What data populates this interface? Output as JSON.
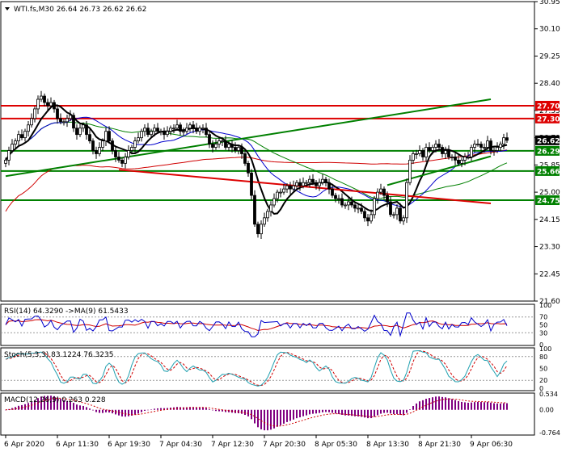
{
  "colors": {
    "background": "#ffffff",
    "axis": "#000000",
    "bull_candle": "#ffffff",
    "bear_candle": "#000000",
    "ma_fast": "#000000",
    "ma_mid": "#0000cc",
    "ma_green": "#008000",
    "ma_slow": "#d00000",
    "level_red": "#dd0000",
    "level_green": "#008000",
    "current_price_bg": "#000000",
    "rsi_line": "#0000cc",
    "rsi_signal": "#d00000",
    "stoch_main": "#20a0b0",
    "stoch_signal": "#d00000",
    "macd_hist": "#800080",
    "macd_signal": "#d00000"
  },
  "header": {
    "symbol_line": "WTI.fs,M30  26.64 26.73 26.62 26.62"
  },
  "chart_data": [
    {
      "type": "candlestick",
      "symbol": "WTI.fs",
      "timeframe": "M30",
      "ohlc": {
        "open": 26.64,
        "high": 26.73,
        "low": 26.62,
        "close": 26.62
      },
      "ylim": [
        21.6,
        30.95
      ],
      "y_ticks": [
        "30.95",
        "30.10",
        "29.25",
        "28.40",
        "27.55",
        "26.70",
        "25.85",
        "25.00",
        "24.15",
        "23.30",
        "22.45",
        "21.60"
      ],
      "x_ticks": [
        "6 Apr 2020",
        "6 Apr 11:30",
        "6 Apr 19:30",
        "7 Apr 04:30",
        "7 Apr 12:30",
        "7 Apr 20:30",
        "8 Apr 05:30",
        "8 Apr 13:30",
        "8 Apr 21:30",
        "9 Apr 06:30"
      ],
      "current_price": "26.62",
      "levels": [
        {
          "value": 27.7,
          "label": "27.70",
          "color": "red"
        },
        {
          "value": 27.3,
          "label": "27.30",
          "color": "red"
        },
        {
          "value": 26.29,
          "label": "26.29",
          "color": "green"
        },
        {
          "value": 25.66,
          "label": "25.66",
          "color": "green"
        },
        {
          "value": 24.75,
          "label": "24.75",
          "color": "green"
        }
      ],
      "trendlines": [
        {
          "color": "green",
          "from": {
            "bar": 0,
            "price": 25.5
          },
          "to": {
            "bar": 150,
            "price": 27.9
          }
        },
        {
          "color": "red",
          "from": {
            "bar": 35,
            "price": 25.7
          },
          "to": {
            "bar": 150,
            "price": 24.65
          }
        },
        {
          "color": "green",
          "from": {
            "bar": 118,
            "price": 25.22
          },
          "to": {
            "bar": 150,
            "price": 26.12
          }
        }
      ],
      "closes": [
        26.0,
        26.3,
        26.5,
        26.6,
        26.8,
        26.7,
        26.9,
        27.1,
        27.3,
        27.6,
        27.9,
        28.0,
        27.8,
        27.7,
        27.8,
        27.6,
        27.3,
        27.2,
        27.2,
        27.3,
        27.4,
        27.0,
        26.8,
        27.0,
        27.1,
        26.8,
        26.6,
        26.3,
        26.2,
        26.4,
        26.6,
        26.9,
        26.6,
        26.3,
        26.1,
        26.0,
        25.9,
        26.1,
        26.3,
        26.4,
        26.6,
        26.7,
        26.9,
        27.0,
        26.8,
        26.9,
        27.0,
        26.9,
        26.9,
        26.8,
        26.9,
        27.0,
        27.0,
        27.1,
        26.9,
        26.9,
        27.0,
        27.1,
        27.0,
        26.9,
        27.0,
        27.0,
        26.8,
        26.5,
        26.4,
        26.5,
        26.6,
        26.6,
        26.4,
        26.5,
        26.4,
        26.3,
        26.4,
        26.2,
        25.9,
        25.6,
        24.9,
        24.0,
        23.7,
        24.0,
        24.2,
        24.4,
        24.6,
        24.8,
        25.0,
        25.0,
        25.1,
        25.2,
        25.1,
        25.2,
        25.3,
        25.2,
        25.3,
        25.3,
        25.4,
        25.3,
        25.2,
        25.3,
        25.4,
        25.3,
        25.1,
        24.9,
        24.8,
        24.8,
        24.6,
        24.6,
        24.7,
        24.6,
        24.5,
        24.5,
        24.4,
        24.2,
        24.1,
        24.3,
        24.8,
        25.0,
        25.1,
        24.9,
        24.7,
        24.3,
        24.3,
        24.5,
        24.1,
        24.2,
        25.3,
        26.0,
        26.2,
        26.2,
        26.3,
        26.1,
        26.4,
        26.3,
        26.4,
        26.5,
        26.4,
        26.2,
        26.3,
        26.1,
        26.1,
        26.0,
        25.9,
        26.0,
        26.1,
        26.1,
        26.4,
        26.5,
        26.5,
        26.4,
        26.4,
        26.6,
        26.3,
        26.3,
        26.4,
        26.5,
        26.7,
        26.62
      ]
    },
    {
      "type": "line",
      "indicator": "RSI",
      "label": "RSI(14) 64.3290  ->MA(9) 61.5433",
      "period": 14,
      "value": 64.329,
      "signal": {
        "period": 9,
        "value": 61.5433
      },
      "ylim": [
        0,
        100
      ],
      "y_ticks": [
        "100",
        "70",
        "50",
        "30",
        "0"
      ]
    },
    {
      "type": "line",
      "indicator": "Stochastic",
      "label": "Stoch(5,3,3) 83.1224 76.3235",
      "params": [
        5,
        3,
        3
      ],
      "main": 83.1224,
      "signal": 76.3235,
      "ylim": [
        0,
        100
      ],
      "y_ticks": [
        "100",
        "80",
        "50",
        "20",
        "0"
      ]
    },
    {
      "type": "bar",
      "indicator": "MACD",
      "label": "MACD(12,26,9) 0.263 0.228",
      "params": [
        12,
        26,
        9
      ],
      "macd": 0.263,
      "signal": 0.228,
      "ylim": [
        -0.764,
        0.534
      ],
      "y_ticks": [
        "0.534",
        "0.00",
        "-0.764"
      ]
    }
  ]
}
